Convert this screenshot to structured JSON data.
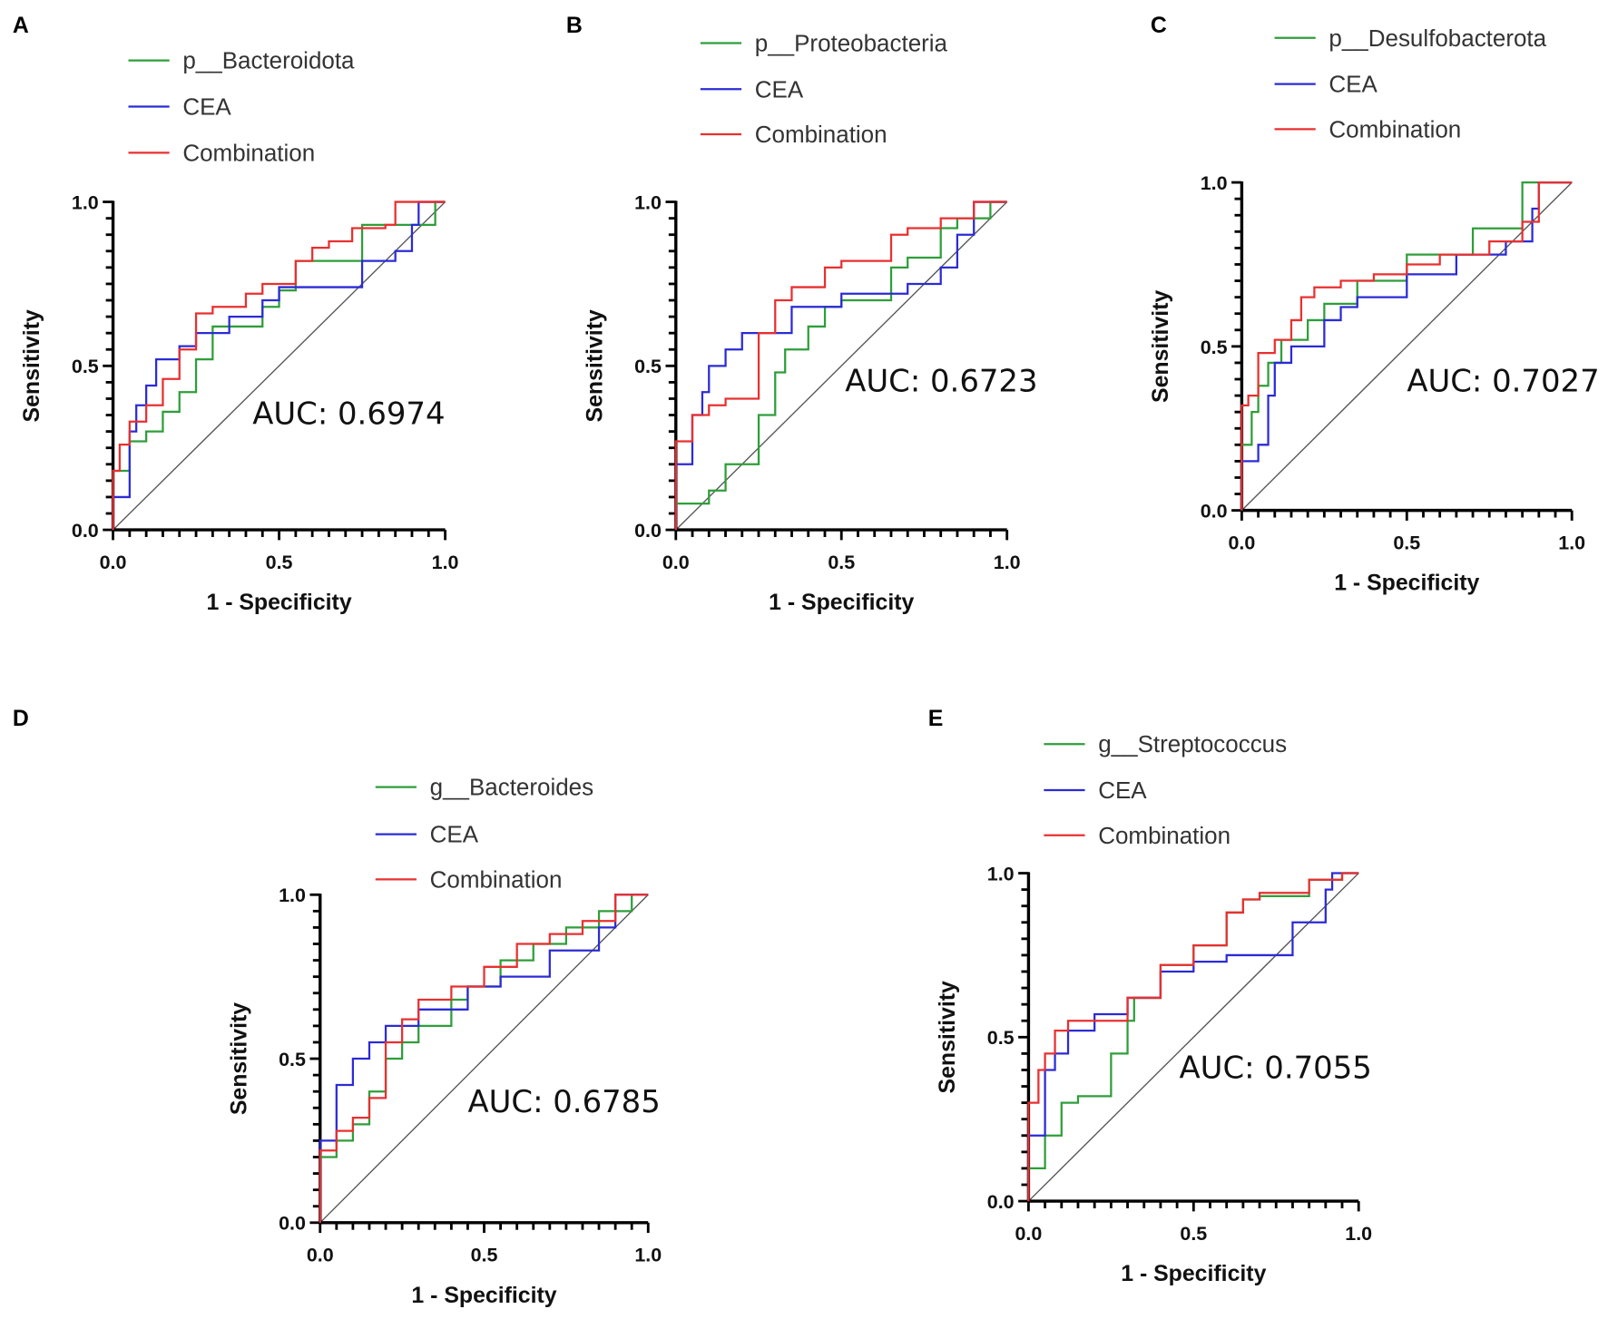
{
  "chart_data": [
    {
      "type": "line",
      "panel": "A",
      "xlabel": "1 - Specificity",
      "ylabel": "Sensitivity",
      "xlim": [
        0,
        1
      ],
      "ylim": [
        0,
        1
      ],
      "xticks": [
        "0.0",
        "0.5",
        "1.0"
      ],
      "yticks": [
        "0.0",
        "0.5",
        "1.0"
      ],
      "auc_text": "AUC: 0.6974",
      "legend_placement": "top",
      "series": [
        {
          "name": "p__Bacteroidota",
          "color": "#2e9e3a",
          "points": [
            [
              0,
              0
            ],
            [
              0,
              0.12
            ],
            [
              0.05,
              0.18
            ],
            [
              0.1,
              0.27
            ],
            [
              0.15,
              0.3
            ],
            [
              0.2,
              0.36
            ],
            [
              0.25,
              0.42
            ],
            [
              0.3,
              0.52
            ],
            [
              0.45,
              0.62
            ],
            [
              0.5,
              0.68
            ],
            [
              0.55,
              0.73
            ],
            [
              0.63,
              0.82
            ],
            [
              0.75,
              0.82
            ],
            [
              0.75,
              0.93
            ],
            [
              0.97,
              0.93
            ],
            [
              1,
              1
            ]
          ]
        },
        {
          "name": "CEA",
          "color": "#2b2bd6",
          "points": [
            [
              0,
              0
            ],
            [
              0,
              0.07
            ],
            [
              0.05,
              0.1
            ],
            [
              0.07,
              0.3
            ],
            [
              0.1,
              0.38
            ],
            [
              0.13,
              0.44
            ],
            [
              0.2,
              0.52
            ],
            [
              0.25,
              0.56
            ],
            [
              0.35,
              0.6
            ],
            [
              0.45,
              0.65
            ],
            [
              0.5,
              0.7
            ],
            [
              0.6,
              0.74
            ],
            [
              0.75,
              0.74
            ],
            [
              0.85,
              0.82
            ],
            [
              0.9,
              0.85
            ],
            [
              0.92,
              0.93
            ],
            [
              1,
              1
            ]
          ]
        },
        {
          "name": "Combination",
          "color": "#e83030",
          "points": [
            [
              0,
              0
            ],
            [
              0.02,
              0.18
            ],
            [
              0.05,
              0.26
            ],
            [
              0.1,
              0.33
            ],
            [
              0.15,
              0.38
            ],
            [
              0.2,
              0.46
            ],
            [
              0.25,
              0.55
            ],
            [
              0.3,
              0.66
            ],
            [
              0.4,
              0.68
            ],
            [
              0.45,
              0.72
            ],
            [
              0.55,
              0.75
            ],
            [
              0.6,
              0.82
            ],
            [
              0.65,
              0.86
            ],
            [
              0.72,
              0.88
            ],
            [
              0.82,
              0.92
            ],
            [
              0.85,
              0.93
            ],
            [
              1,
              1
            ]
          ]
        }
      ]
    },
    {
      "type": "line",
      "panel": "B",
      "xlabel": "1 - Specificity",
      "ylabel": "Sensitivity",
      "xlim": [
        0,
        1
      ],
      "ylim": [
        0,
        1
      ],
      "xticks": [
        "0.0",
        "0.5",
        "1.0"
      ],
      "yticks": [
        "0.0",
        "0.5",
        "1.0"
      ],
      "auc_text": "AUC:   0.6723",
      "legend_placement": "top",
      "series": [
        {
          "name": "p__Proteobacteria",
          "color": "#2e9e3a",
          "points": [
            [
              0,
              0
            ],
            [
              0,
              0.03
            ],
            [
              0.1,
              0.08
            ],
            [
              0.15,
              0.12
            ],
            [
              0.25,
              0.2
            ],
            [
              0.3,
              0.35
            ],
            [
              0.33,
              0.48
            ],
            [
              0.4,
              0.55
            ],
            [
              0.45,
              0.62
            ],
            [
              0.5,
              0.68
            ],
            [
              0.65,
              0.7
            ],
            [
              0.7,
              0.8
            ],
            [
              0.8,
              0.83
            ],
            [
              0.85,
              0.92
            ],
            [
              0.95,
              0.95
            ],
            [
              1,
              1
            ]
          ]
        },
        {
          "name": "CEA",
          "color": "#2b2bd6",
          "points": [
            [
              0,
              0
            ],
            [
              0,
              0.1
            ],
            [
              0.05,
              0.2
            ],
            [
              0.08,
              0.35
            ],
            [
              0.1,
              0.42
            ],
            [
              0.15,
              0.5
            ],
            [
              0.2,
              0.55
            ],
            [
              0.3,
              0.6
            ],
            [
              0.35,
              0.6
            ],
            [
              0.5,
              0.68
            ],
            [
              0.7,
              0.72
            ],
            [
              0.8,
              0.75
            ],
            [
              0.85,
              0.8
            ],
            [
              0.9,
              0.9
            ],
            [
              1,
              1
            ]
          ]
        },
        {
          "name": "Combination",
          "color": "#e83030",
          "points": [
            [
              0,
              0
            ],
            [
              0,
              0.2
            ],
            [
              0.05,
              0.27
            ],
            [
              0.1,
              0.35
            ],
            [
              0.15,
              0.38
            ],
            [
              0.25,
              0.4
            ],
            [
              0.3,
              0.6
            ],
            [
              0.35,
              0.7
            ],
            [
              0.45,
              0.74
            ],
            [
              0.5,
              0.8
            ],
            [
              0.65,
              0.82
            ],
            [
              0.7,
              0.9
            ],
            [
              0.8,
              0.92
            ],
            [
              0.9,
              0.95
            ],
            [
              1,
              1
            ]
          ]
        }
      ]
    },
    {
      "type": "line",
      "panel": "C",
      "xlabel": "1 - Specificity",
      "ylabel": "Sensitivity",
      "xlim": [
        0,
        1
      ],
      "ylim": [
        0,
        1
      ],
      "xticks": [
        "0.0",
        "0.5",
        "1.0"
      ],
      "yticks": [
        "0.0",
        "0.5",
        "1.0"
      ],
      "auc_text": "AUC: 0.7027",
      "legend_placement": "top",
      "series": [
        {
          "name": "p__Desulfobacterota",
          "color": "#2e9e3a",
          "points": [
            [
              0,
              0
            ],
            [
              0,
              0.1
            ],
            [
              0.03,
              0.2
            ],
            [
              0.05,
              0.3
            ],
            [
              0.08,
              0.38
            ],
            [
              0.12,
              0.45
            ],
            [
              0.2,
              0.52
            ],
            [
              0.25,
              0.58
            ],
            [
              0.35,
              0.63
            ],
            [
              0.5,
              0.7
            ],
            [
              0.7,
              0.78
            ],
            [
              0.85,
              0.86
            ],
            [
              1,
              1
            ]
          ]
        },
        {
          "name": "CEA",
          "color": "#2b2bd6",
          "points": [
            [
              0,
              0
            ],
            [
              0,
              0.08
            ],
            [
              0.05,
              0.15
            ],
            [
              0.08,
              0.2
            ],
            [
              0.1,
              0.35
            ],
            [
              0.15,
              0.45
            ],
            [
              0.25,
              0.5
            ],
            [
              0.3,
              0.58
            ],
            [
              0.35,
              0.62
            ],
            [
              0.5,
              0.65
            ],
            [
              0.5,
              0.72
            ],
            [
              0.65,
              0.72
            ],
            [
              0.8,
              0.78
            ],
            [
              0.88,
              0.82
            ],
            [
              0.9,
              0.92
            ],
            [
              1,
              1
            ]
          ]
        },
        {
          "name": "Combination",
          "color": "#e83030",
          "points": [
            [
              0,
              0
            ],
            [
              0,
              0.15
            ],
            [
              0.02,
              0.32
            ],
            [
              0.05,
              0.35
            ],
            [
              0.1,
              0.48
            ],
            [
              0.15,
              0.52
            ],
            [
              0.18,
              0.58
            ],
            [
              0.22,
              0.65
            ],
            [
              0.3,
              0.68
            ],
            [
              0.4,
              0.7
            ],
            [
              0.5,
              0.72
            ],
            [
              0.6,
              0.75
            ],
            [
              0.75,
              0.78
            ],
            [
              0.85,
              0.82
            ],
            [
              0.9,
              0.88
            ],
            [
              1,
              1
            ]
          ]
        }
      ]
    },
    {
      "type": "line",
      "panel": "D",
      "xlabel": "1 - Specificity",
      "ylabel": "Sensitivity",
      "xlim": [
        0,
        1
      ],
      "ylim": [
        0,
        1
      ],
      "xticks": [
        "0.0",
        "0.5",
        "1.0"
      ],
      "yticks": [
        "0.0",
        "0.5",
        "1.0"
      ],
      "auc_text": "AUC: 0.6785",
      "legend_placement": "top",
      "series": [
        {
          "name": "g__Bacteroides",
          "color": "#2e9e3a",
          "points": [
            [
              0,
              0
            ],
            [
              0,
              0.1
            ],
            [
              0.05,
              0.2
            ],
            [
              0.1,
              0.25
            ],
            [
              0.15,
              0.3
            ],
            [
              0.2,
              0.4
            ],
            [
              0.25,
              0.5
            ],
            [
              0.3,
              0.55
            ],
            [
              0.4,
              0.6
            ],
            [
              0.45,
              0.68
            ],
            [
              0.55,
              0.72
            ],
            [
              0.65,
              0.8
            ],
            [
              0.75,
              0.85
            ],
            [
              0.85,
              0.9
            ],
            [
              0.95,
              0.95
            ],
            [
              1,
              1
            ]
          ]
        },
        {
          "name": "CEA",
          "color": "#2b2bd6",
          "points": [
            [
              0,
              0
            ],
            [
              0,
              0.15
            ],
            [
              0.05,
              0.25
            ],
            [
              0.1,
              0.42
            ],
            [
              0.15,
              0.5
            ],
            [
              0.2,
              0.55
            ],
            [
              0.3,
              0.6
            ],
            [
              0.45,
              0.65
            ],
            [
              0.55,
              0.72
            ],
            [
              0.7,
              0.75
            ],
            [
              0.85,
              0.83
            ],
            [
              0.9,
              0.9
            ],
            [
              1,
              1
            ]
          ]
        },
        {
          "name": "Combination",
          "color": "#e83030",
          "points": [
            [
              0,
              0
            ],
            [
              0,
              0.2
            ],
            [
              0.05,
              0.22
            ],
            [
              0.1,
              0.28
            ],
            [
              0.15,
              0.32
            ],
            [
              0.2,
              0.38
            ],
            [
              0.25,
              0.55
            ],
            [
              0.3,
              0.62
            ],
            [
              0.4,
              0.68
            ],
            [
              0.5,
              0.72
            ],
            [
              0.6,
              0.78
            ],
            [
              0.7,
              0.85
            ],
            [
              0.8,
              0.88
            ],
            [
              0.9,
              0.92
            ],
            [
              1,
              1
            ]
          ]
        }
      ]
    },
    {
      "type": "line",
      "panel": "E",
      "xlabel": "1 - Specificity",
      "ylabel": "Sensitivity",
      "xlim": [
        0,
        1
      ],
      "ylim": [
        0,
        1
      ],
      "xticks": [
        "0.0",
        "0.5",
        "1.0"
      ],
      "yticks": [
        "0.0",
        "0.5",
        "1.0"
      ],
      "auc_text": "AUC: 0.7055",
      "legend_placement": "top",
      "series": [
        {
          "name": "g__Streptococcus",
          "color": "#2e9e3a",
          "points": [
            [
              0,
              0
            ],
            [
              0.05,
              0.1
            ],
            [
              0.1,
              0.2
            ],
            [
              0.15,
              0.3
            ],
            [
              0.25,
              0.32
            ],
            [
              0.3,
              0.45
            ],
            [
              0.32,
              0.55
            ],
            [
              0.4,
              0.62
            ],
            [
              0.5,
              0.72
            ],
            [
              0.6,
              0.78
            ],
            [
              0.65,
              0.88
            ],
            [
              0.7,
              0.92
            ],
            [
              0.85,
              0.93
            ],
            [
              0.95,
              0.98
            ],
            [
              1,
              1
            ]
          ]
        },
        {
          "name": "CEA",
          "color": "#2b2bd6",
          "points": [
            [
              0,
              0
            ],
            [
              0,
              0.1
            ],
            [
              0.05,
              0.2
            ],
            [
              0.08,
              0.4
            ],
            [
              0.12,
              0.45
            ],
            [
              0.2,
              0.52
            ],
            [
              0.3,
              0.57
            ],
            [
              0.4,
              0.62
            ],
            [
              0.5,
              0.7
            ],
            [
              0.6,
              0.73
            ],
            [
              0.65,
              0.75
            ],
            [
              0.8,
              0.75
            ],
            [
              0.9,
              0.85
            ],
            [
              0.92,
              0.95
            ],
            [
              1,
              1
            ]
          ]
        },
        {
          "name": "Combination",
          "color": "#e83030",
          "points": [
            [
              0,
              0
            ],
            [
              0,
              0.12
            ],
            [
              0.03,
              0.3
            ],
            [
              0.05,
              0.4
            ],
            [
              0.08,
              0.45
            ],
            [
              0.12,
              0.52
            ],
            [
              0.3,
              0.55
            ],
            [
              0.4,
              0.62
            ],
            [
              0.5,
              0.72
            ],
            [
              0.6,
              0.78
            ],
            [
              0.65,
              0.88
            ],
            [
              0.7,
              0.92
            ],
            [
              0.85,
              0.94
            ],
            [
              0.95,
              0.98
            ],
            [
              1,
              1
            ]
          ]
        }
      ]
    }
  ]
}
